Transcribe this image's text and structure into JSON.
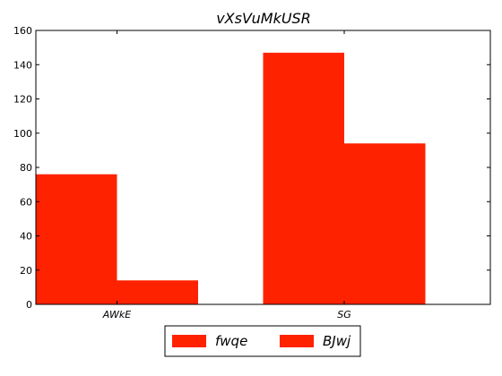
{
  "chart_data": {
    "type": "bar",
    "title": "vXsVuMkUSR",
    "xlabel": "",
    "ylabel": "",
    "categories": [
      "AWkE",
      "SG"
    ],
    "series": [
      {
        "name": "fwqe",
        "values": [
          76,
          147
        ],
        "color": "#ff2200"
      },
      {
        "name": "BJwj",
        "values": [
          14,
          94
        ],
        "color": "#ff2200"
      }
    ],
    "ylim": [
      0,
      160
    ],
    "yticks": [
      0,
      20,
      40,
      60,
      80,
      100,
      120,
      140,
      160
    ],
    "grid": false,
    "legend_position": "bottom-center"
  }
}
